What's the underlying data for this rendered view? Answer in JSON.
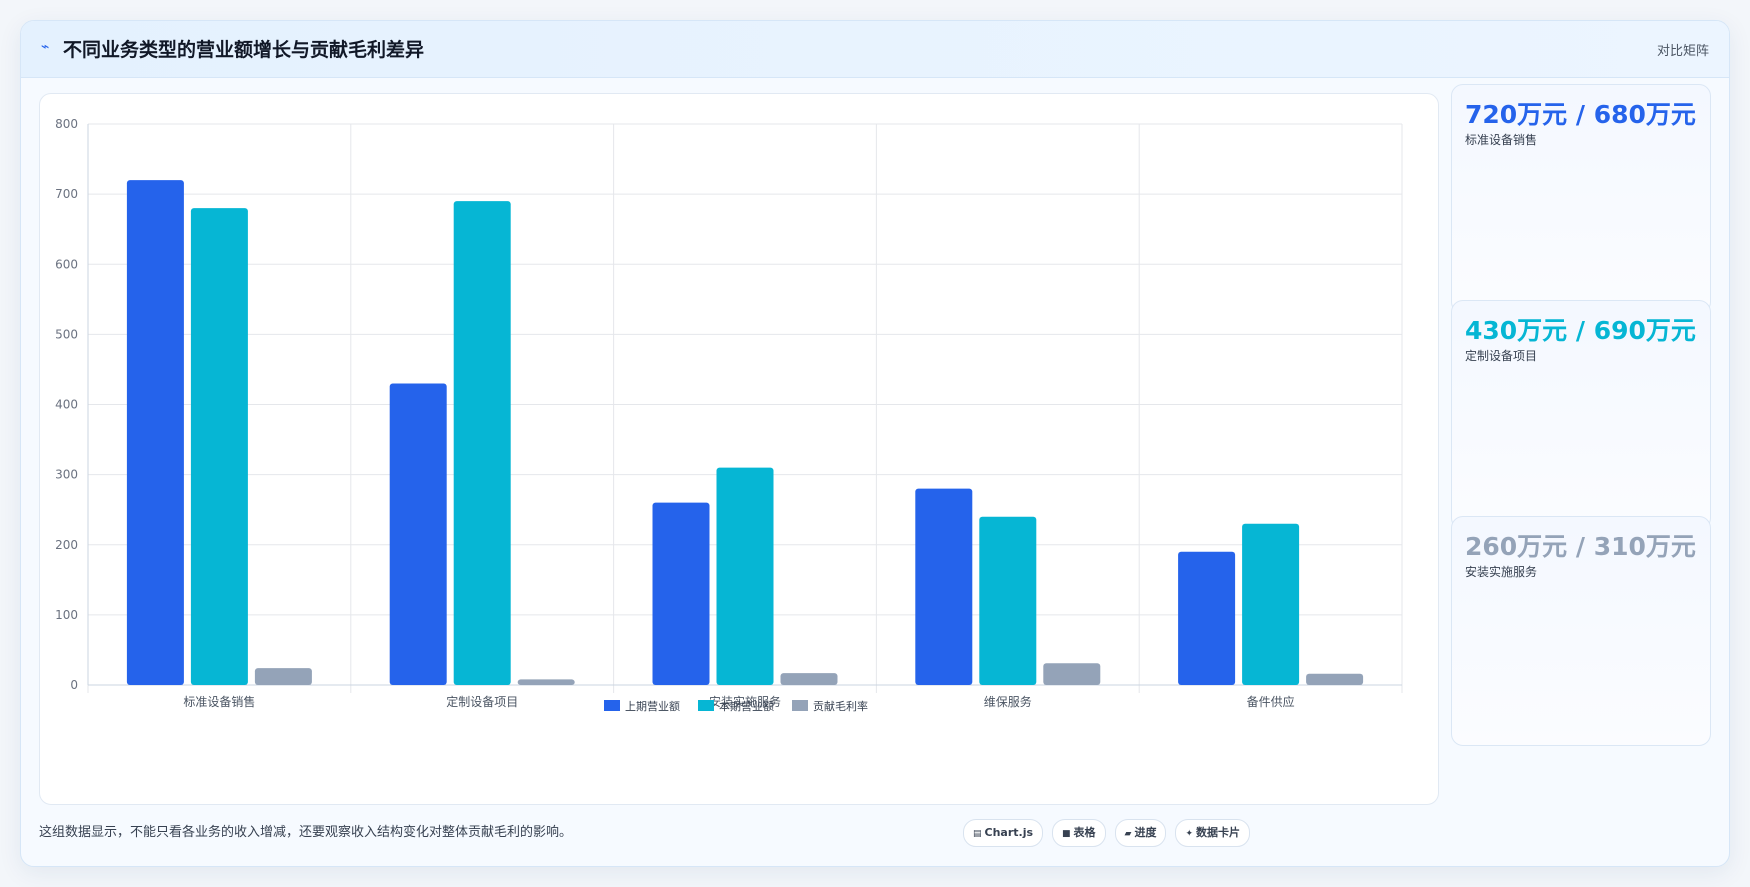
{
  "header": {
    "title": "不同业务类型的营业额增长与贡献毛利差异",
    "tag": "对比矩阵"
  },
  "stats": [
    {
      "value": "720万元 / 680万元",
      "label": "标准设备销售",
      "color": "#2563eb"
    },
    {
      "value": "430万元 / 690万元",
      "label": "定制设备项目",
      "color": "#06b6d4"
    },
    {
      "value": "260万元 / 310万元",
      "label": "安装实施服务",
      "color": "#94a3b8"
    }
  ],
  "footer": {
    "note": "这组数据显示，不能只看各业务的收入增减，还要观察收入结构变化对整体贡献毛利的影响。",
    "chips": [
      {
        "icon": "chart-icon",
        "glyph": "▤",
        "label": "Chart.js"
      },
      {
        "icon": "table-icon",
        "glyph": "■",
        "label": "表格"
      },
      {
        "icon": "progress-icon",
        "glyph": "▰",
        "label": "进度"
      },
      {
        "icon": "card-icon",
        "glyph": "✦",
        "label": "数据卡片"
      }
    ]
  },
  "chart_data": {
    "type": "bar",
    "categories": [
      "标准设备销售",
      "定制设备项目",
      "安装实施服务",
      "维保服务",
      "备件供应"
    ],
    "series": [
      {
        "name": "上期营业额",
        "color": "#2563eb",
        "values": [
          720,
          430,
          260,
          280,
          190
        ]
      },
      {
        "name": "本期营业额",
        "color": "#06b6d4",
        "values": [
          680,
          690,
          310,
          240,
          230
        ]
      },
      {
        "name": "贡献毛利率",
        "color": "#94a3b8",
        "values": [
          24,
          8,
          17,
          31,
          16
        ]
      }
    ],
    "ylim": [
      0,
      800
    ],
    "yticks": [
      0,
      100,
      200,
      300,
      400,
      500,
      600,
      700,
      800
    ],
    "grid": true,
    "legend": "bottom"
  }
}
